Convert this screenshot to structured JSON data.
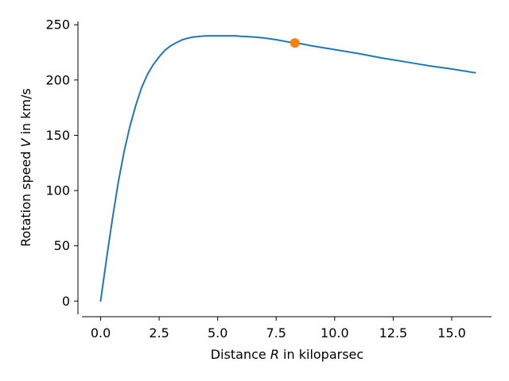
{
  "chart_data": {
    "type": "line",
    "xlabel": {
      "pre": "Distance ",
      "var": "R",
      "post": " in kiloparsec"
    },
    "ylabel": {
      "pre": "Rotation speed ",
      "var": "V",
      "post": " in km/s"
    },
    "xlim": [
      -0.8,
      16.7
    ],
    "ylim": [
      -12,
      253
    ],
    "xticks": [
      0,
      2.5,
      5,
      7.5,
      10,
      12.5,
      15
    ],
    "xtick_labels": [
      "0.0",
      "2.5",
      "5.0",
      "7.5",
      "10.0",
      "12.5",
      "15.0"
    ],
    "yticks": [
      0,
      50,
      100,
      150,
      200,
      250
    ],
    "ytick_labels": [
      "0",
      "50",
      "100",
      "150",
      "200",
      "250"
    ],
    "grid": false,
    "series": [
      {
        "color": "#1f77b4",
        "x": [
          0,
          0.25,
          0.5,
          0.75,
          1.0,
          1.25,
          1.5,
          1.75,
          2.0,
          2.25,
          2.5,
          2.75,
          3.0,
          3.25,
          3.5,
          3.75,
          4.0,
          4.5,
          5.0,
          5.5,
          5.75,
          6.0,
          6.5,
          7.0,
          7.5,
          8.0,
          8.5,
          9.0,
          10.0,
          11.0,
          12.0,
          13.0,
          14.0,
          15.0,
          16.0
        ],
        "y": [
          0,
          38,
          74,
          107,
          135,
          158,
          177,
          193,
          205,
          214,
          221,
          227,
          231,
          234,
          236.5,
          238,
          239,
          240,
          240,
          240,
          240,
          239.5,
          239,
          238,
          236.5,
          234.5,
          233,
          231,
          227.5,
          224,
          220,
          216.5,
          213,
          210,
          206.5
        ]
      }
    ],
    "highlight_point": {
      "x": 8.3,
      "y": 233.5,
      "color": "#ff7f0e"
    }
  }
}
